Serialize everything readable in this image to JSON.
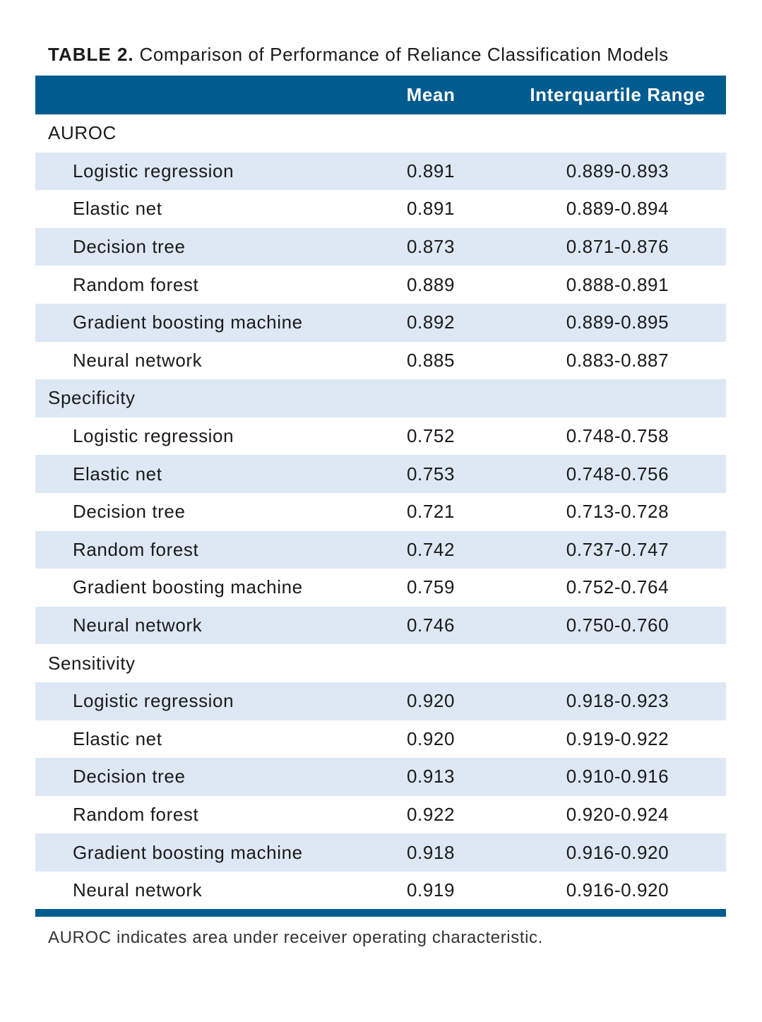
{
  "title": {
    "label": "TABLE 2.",
    "text": "Comparison of Performance of Reliance Classification Models"
  },
  "header": {
    "mean": "Mean",
    "iqr": "Interquartile Range"
  },
  "sections": [
    {
      "name": "AUROC",
      "rows": [
        {
          "label": "Logistic regression",
          "mean": "0.891",
          "iqr": "0.889-0.893"
        },
        {
          "label": "Elastic net",
          "mean": "0.891",
          "iqr": "0.889-0.894"
        },
        {
          "label": "Decision tree",
          "mean": "0.873",
          "iqr": "0.871-0.876"
        },
        {
          "label": "Random forest",
          "mean": "0.889",
          "iqr": "0.888-0.891"
        },
        {
          "label": "Gradient boosting machine",
          "mean": "0.892",
          "iqr": "0.889-0.895"
        },
        {
          "label": "Neural network",
          "mean": "0.885",
          "iqr": "0.883-0.887"
        }
      ]
    },
    {
      "name": "Specificity",
      "rows": [
        {
          "label": "Logistic regression",
          "mean": "0.752",
          "iqr": "0.748-0.758"
        },
        {
          "label": "Elastic net",
          "mean": "0.753",
          "iqr": "0.748-0.756"
        },
        {
          "label": "Decision tree",
          "mean": "0.721",
          "iqr": "0.713-0.728"
        },
        {
          "label": "Random forest",
          "mean": "0.742",
          "iqr": "0.737-0.747"
        },
        {
          "label": "Gradient boosting machine",
          "mean": "0.759",
          "iqr": "0.752-0.764"
        },
        {
          "label": "Neural network",
          "mean": "0.746",
          "iqr": "0.750-0.760"
        }
      ]
    },
    {
      "name": "Sensitivity",
      "rows": [
        {
          "label": "Logistic regression",
          "mean": "0.920",
          "iqr": "0.918-0.923"
        },
        {
          "label": "Elastic net",
          "mean": "0.920",
          "iqr": "0.919-0.922"
        },
        {
          "label": "Decision tree",
          "mean": "0.913",
          "iqr": "0.910-0.916"
        },
        {
          "label": "Random forest",
          "mean": "0.922",
          "iqr": "0.920-0.924"
        },
        {
          "label": "Gradient boosting machine",
          "mean": "0.918",
          "iqr": "0.916-0.920"
        },
        {
          "label": "Neural network",
          "mean": "0.919",
          "iqr": "0.916-0.920"
        }
      ]
    }
  ],
  "footnote": "AUROC indicates area under receiver operating characteristic."
}
